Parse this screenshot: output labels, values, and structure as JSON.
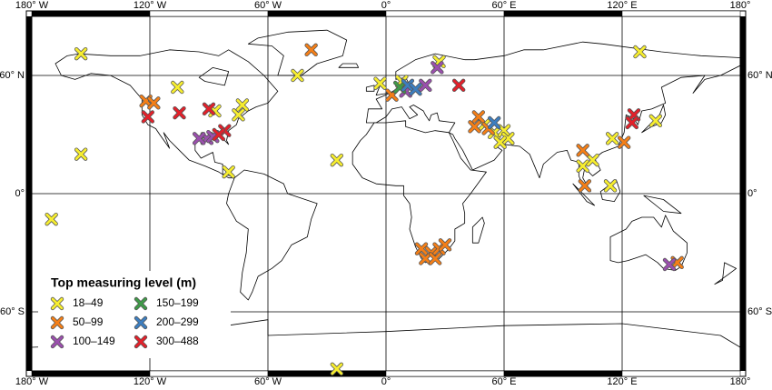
{
  "map": {
    "lon_ticks": [
      {
        "value": -180,
        "label": "180° W"
      },
      {
        "value": -120,
        "label": "120° W"
      },
      {
        "value": -60,
        "label": "60° W"
      },
      {
        "value": 0,
        "label": "0°"
      },
      {
        "value": 60,
        "label": "60° E"
      },
      {
        "value": 120,
        "label": "120° E"
      },
      {
        "value": 180,
        "label": "180°"
      }
    ],
    "lat_ticks": [
      {
        "value": 60,
        "label": "60° N"
      },
      {
        "value": 0,
        "label": "0°"
      },
      {
        "value": -60,
        "label": "60° S"
      }
    ]
  },
  "legend": {
    "title": "Top measuring level (m)",
    "classes": [
      {
        "label": "18–49",
        "color": "#f7ee2f",
        "sites": [
          [
            -155,
            71
          ],
          [
            -155,
            20
          ],
          [
            -170,
            -13
          ],
          [
            -106,
            54
          ],
          [
            -87,
            42
          ],
          [
            -75,
            40
          ],
          [
            -80,
            11
          ],
          [
            -45,
            60
          ],
          [
            -25,
            17
          ],
          [
            -25,
            -89
          ],
          [
            129,
            72
          ],
          [
            -3,
            56
          ],
          [
            8,
            57
          ],
          [
            27,
            67
          ],
          [
            55,
            31
          ],
          [
            60,
            32
          ],
          [
            50,
            35
          ],
          [
            62,
            28
          ],
          [
            58,
            26
          ],
          [
            100,
            14
          ],
          [
            105,
            17
          ],
          [
            115,
            28
          ],
          [
            114,
            4
          ],
          [
            137,
            37
          ],
          [
            -73,
            45
          ]
        ]
      },
      {
        "label": "50–99",
        "color": "#f57f17",
        "sites": [
          [
            -38,
            73
          ],
          [
            -122,
            47
          ],
          [
            -118,
            46
          ],
          [
            47,
            39
          ],
          [
            45,
            34
          ],
          [
            52,
            33
          ],
          [
            18,
            -28
          ],
          [
            23,
            -30
          ],
          [
            27,
            -28
          ],
          [
            30,
            -26
          ],
          [
            20,
            -33
          ],
          [
            25,
            -33
          ],
          [
            100,
            22
          ],
          [
            121,
            26
          ],
          [
            101,
            4
          ],
          [
            148,
            -35
          ],
          [
            3,
            50
          ]
        ]
      },
      {
        "label": "100–149",
        "color": "#9b4fae",
        "sites": [
          [
            -91,
            28
          ],
          [
            -95,
            28
          ],
          [
            -88,
            29
          ],
          [
            10,
            52
          ],
          [
            20,
            55
          ],
          [
            26,
            64
          ],
          [
            144,
            -36
          ]
        ]
      },
      {
        "label": "150–199",
        "color": "#3f9a48",
        "sites": [
          [
            7,
            54
          ]
        ]
      },
      {
        "label": "200–299",
        "color": "#3d7ec0",
        "sites": [
          [
            11,
            55
          ],
          [
            15,
            53
          ],
          [
            55,
            36
          ]
        ]
      },
      {
        "label": "300–488",
        "color": "#e3202a",
        "sites": [
          [
            -121,
            39
          ],
          [
            -105,
            41
          ],
          [
            -90,
            43
          ],
          [
            -82,
            32
          ],
          [
            -85,
            30
          ],
          [
            37,
            55
          ],
          [
            126,
            40
          ],
          [
            125,
            36
          ]
        ]
      }
    ]
  }
}
